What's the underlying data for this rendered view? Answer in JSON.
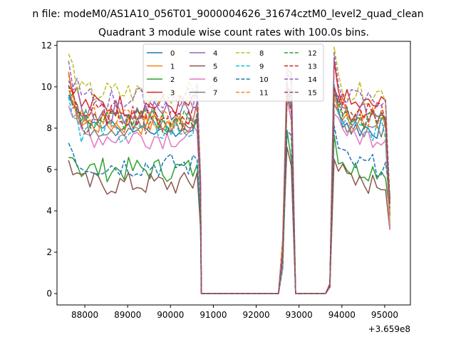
{
  "chart_data": {
    "type": "line",
    "suptitle": "n file: modeM0/AS1A10_056T01_9000004626_31674cztM0_level2_quad_clean",
    "title": "Quadrant 3 module wise count rates with 100.0s bins.",
    "xlabel": "",
    "ylabel": "",
    "x_offset_label": "+3.659e8",
    "xlim": [
      87350,
      95600
    ],
    "ylim": [
      -0.55,
      12.2
    ],
    "x_ticks": [
      88000,
      89000,
      90000,
      91000,
      92000,
      93000,
      94000,
      95000
    ],
    "x_tick_labels": [
      "88000",
      "89000",
      "90000",
      "91000",
      "92000",
      "93000",
      "94000",
      "95000"
    ],
    "y_ticks": [
      0,
      2,
      4,
      6,
      8,
      10,
      12
    ],
    "y_tick_labels": [
      "0",
      "2",
      "4",
      "6",
      "8",
      "10",
      "12"
    ],
    "grid": false,
    "legend": {
      "placement": "top-center",
      "columns": 4
    },
    "segments": [
      {
        "x_start": 87620,
        "x_step": 100,
        "count": 31,
        "level": "on"
      },
      {
        "x_start": 90720,
        "x_step": 100,
        "count": 19,
        "level": "off"
      },
      {
        "x_start": 92620,
        "x_step": 100,
        "count": 3,
        "level": "spike"
      },
      {
        "x_start": 92920,
        "x_step": 100,
        "count": 8,
        "level": "off"
      },
      {
        "x_start": 93720,
        "x_step": 100,
        "count": 15,
        "level": "on"
      }
    ],
    "series": [
      {
        "name": "0",
        "color": "#1f77b4",
        "dash": "solid",
        "mean": 8.0,
        "values_first_segment": [
          9.6,
          9.2,
          8.8,
          8.6,
          8.4,
          8.2,
          8.3,
          8.1,
          8.0,
          8.2,
          8.4,
          8.1,
          7.9,
          8.0,
          8.2,
          7.8,
          7.9,
          8.1,
          8.0,
          7.8,
          7.7,
          7.9,
          8.0,
          7.8,
          7.9,
          7.6,
          7.8,
          8.0,
          7.8,
          7.9,
          7.7
        ]
      },
      {
        "name": "1",
        "color": "#ff7f0e",
        "dash": "solid",
        "mean": 8.2
      },
      {
        "name": "2",
        "color": "#2ca02c",
        "dash": "solid",
        "mean": 6.0
      },
      {
        "name": "3",
        "color": "#d62728",
        "dash": "solid",
        "mean": 9.1
      },
      {
        "name": "4",
        "color": "#9467bd",
        "dash": "solid",
        "mean": 8.8
      },
      {
        "name": "5",
        "color": "#8c564b",
        "dash": "solid",
        "mean": 5.3
      },
      {
        "name": "6",
        "color": "#e377c2",
        "dash": "solid",
        "mean": 7.6
      },
      {
        "name": "7",
        "color": "#7f7f7f",
        "dash": "solid",
        "mean": 8.1
      },
      {
        "name": "8",
        "color": "#bcbd22",
        "dash": "dashed",
        "mean": 9.7
      },
      {
        "name": "9",
        "color": "#17becf",
        "dash": "dashed",
        "mean": 7.9
      },
      {
        "name": "10",
        "color": "#1f77b4",
        "dash": "dashed",
        "mean": 6.2
      },
      {
        "name": "11",
        "color": "#ff7f0e",
        "dash": "dashed",
        "mean": 8.5
      },
      {
        "name": "12",
        "color": "#2ca02c",
        "dash": "dashed",
        "mean": 8.4
      },
      {
        "name": "13",
        "color": "#d62728",
        "dash": "dashed",
        "mean": 8.7
      },
      {
        "name": "14",
        "color": "#9467bd",
        "dash": "dashed",
        "mean": 9.4
      },
      {
        "name": "15",
        "color": "#8c564b",
        "dash": "dashed",
        "mean": 8.3
      }
    ]
  }
}
